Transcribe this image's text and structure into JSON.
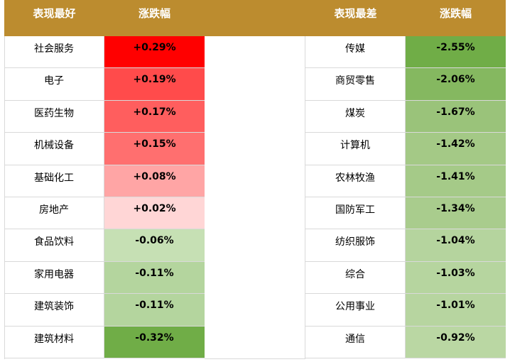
{
  "header": [
    "表现最好",
    "涨跌幅",
    "表现最差",
    "涨跌幅"
  ],
  "best": [
    {
      "name": "社会服务",
      "change": "+0.29%",
      "color": "#ff0000"
    },
    {
      "name": "电子",
      "change": "+0.19%",
      "color": "#ff4b4b"
    },
    {
      "name": "医药生物",
      "change": "+0.17%",
      "color": "#ff5e5e"
    },
    {
      "name": "机械设备",
      "change": "+0.15%",
      "color": "#ff6f6f"
    },
    {
      "name": "基础化工",
      "change": "+0.08%",
      "color": "#ffa5a5"
    },
    {
      "name": "房地产",
      "change": "+0.02%",
      "color": "#ffd6d6"
    },
    {
      "name": "食品饮料",
      "change": "-0.06%",
      "color": "#c6e0b4"
    },
    {
      "name": "家用电器",
      "change": "-0.11%",
      "color": "#b4d59e"
    },
    {
      "name": "建筑装饰",
      "change": "-0.11%",
      "color": "#b4d59e"
    },
    {
      "name": "建筑材料",
      "change": "-0.32%",
      "color": "#70ad47"
    }
  ],
  "worst": [
    {
      "name": "传媒",
      "change": "-2.55%",
      "color": "#70ad47"
    },
    {
      "name": "商贸零售",
      "change": "-2.06%",
      "color": "#85b860"
    },
    {
      "name": "煤炭",
      "change": "-1.67%",
      "color": "#9ac37a"
    },
    {
      "name": "计算机",
      "change": "-1.42%",
      "color": "#a4c986"
    },
    {
      "name": "农林牧渔",
      "change": "-1.41%",
      "color": "#a5ca88"
    },
    {
      "name": "国防军工",
      "change": "-1.34%",
      "color": "#a9cc8d"
    },
    {
      "name": "纺织服饰",
      "change": "-1.04%",
      "color": "#b5d49e"
    },
    {
      "name": "综合",
      "change": "-1.03%",
      "color": "#b6d59f"
    },
    {
      "name": "公用事业",
      "change": "-1.01%",
      "color": "#b7d5a0"
    },
    {
      "name": "通信",
      "change": "-0.92%",
      "color": "#bad7a3"
    }
  ]
}
